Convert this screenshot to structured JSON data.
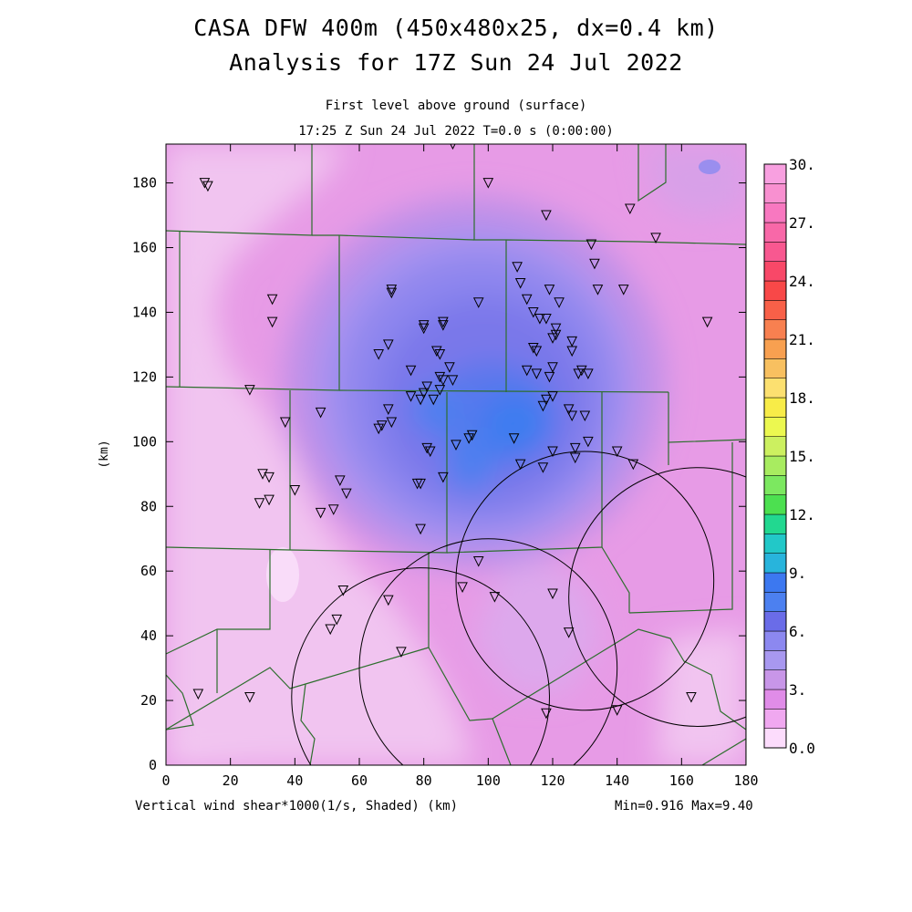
{
  "header": {
    "title_line1": "CASA DFW 400m (450x480x25, dx=0.4 km)",
    "title_line2": "Analysis for 17Z Sun 24 Jul 2022",
    "level": "First level above ground (surface)",
    "time": "17:25 Z Sun 24 Jul 2022   T=0.0 s (0:00:00)"
  },
  "footer": {
    "field_label": "Vertical wind shear*1000(1/s, Shaded)  (km)",
    "minmax": "Min=0.916 Max=9.40"
  },
  "chart_data": {
    "type": "heatmap",
    "title": "CASA DFW 400m (450x480x25, dx=0.4 km)",
    "subtitle": "Analysis for 17Z Sun 24 Jul 2022",
    "xlabel": "(km)",
    "ylabel": "(km)",
    "xlim": [
      0,
      180
    ],
    "ylim": [
      0,
      192
    ],
    "x_ticks": [
      0,
      20,
      40,
      60,
      80,
      100,
      120,
      140,
      160,
      180
    ],
    "y_ticks": [
      0,
      20,
      40,
      60,
      80,
      100,
      120,
      140,
      160,
      180
    ],
    "colorbar": {
      "min": 0,
      "max": 30,
      "step": 1.5,
      "labels": [
        "0.0",
        "3.",
        "6.",
        "9.",
        "12.",
        "15.",
        "18.",
        "21.",
        "24.",
        "27.",
        "30."
      ],
      "colors": [
        "#fcdcfc",
        "#f0a8f0",
        "#e08ce8",
        "#c896e8",
        "#a898f0",
        "#8c88f0",
        "#6a6ce8",
        "#4c80f0",
        "#3c78f0",
        "#28b4dc",
        "#22c8c8",
        "#22d890",
        "#4ce050",
        "#7ce860",
        "#a8ec60",
        "#ccf060",
        "#ecf850",
        "#f8ec48",
        "#fce070",
        "#f8c060",
        "#f8a050",
        "#f88050",
        "#f86048",
        "#f84848",
        "#f84868",
        "#f85890",
        "#f868a8",
        "#f878c0",
        "#f890d0",
        "#f8a0e0"
      ]
    },
    "field_min": 0.916,
    "field_max": 9.4,
    "radars": [
      {
        "x": 130,
        "y": 57,
        "r": 40
      },
      {
        "x": 165,
        "y": 52,
        "r": 40
      },
      {
        "x": 100,
        "y": 30,
        "r": 40
      },
      {
        "x": 79,
        "y": 21,
        "r": 40
      }
    ],
    "stations": [
      [
        89,
        192
      ],
      [
        100,
        180
      ],
      [
        12,
        180
      ],
      [
        13,
        179
      ],
      [
        118,
        170
      ],
      [
        144,
        172
      ],
      [
        152,
        163
      ],
      [
        132,
        161
      ],
      [
        133,
        155
      ],
      [
        109,
        154
      ],
      [
        119,
        147
      ],
      [
        134,
        147
      ],
      [
        142,
        147
      ],
      [
        70,
        147
      ],
      [
        70,
        146
      ],
      [
        33,
        144
      ],
      [
        112,
        144
      ],
      [
        97,
        143
      ],
      [
        110,
        149
      ],
      [
        114,
        140
      ],
      [
        116,
        138
      ],
      [
        118,
        138
      ],
      [
        122,
        143
      ],
      [
        86,
        137
      ],
      [
        86,
        136
      ],
      [
        80,
        136
      ],
      [
        80,
        135
      ],
      [
        121,
        135
      ],
      [
        120,
        132
      ],
      [
        121,
        133
      ],
      [
        126,
        131
      ],
      [
        33,
        137
      ],
      [
        168,
        137
      ],
      [
        66,
        127
      ],
      [
        69,
        130
      ],
      [
        84,
        128
      ],
      [
        85,
        127
      ],
      [
        114,
        129
      ],
      [
        115,
        128
      ],
      [
        126,
        128
      ],
      [
        112,
        122
      ],
      [
        115,
        121
      ],
      [
        119,
        120
      ],
      [
        120,
        123
      ],
      [
        129,
        122
      ],
      [
        131,
        121
      ],
      [
        128,
        121
      ],
      [
        76,
        122
      ],
      [
        85,
        120
      ],
      [
        86,
        119
      ],
      [
        88,
        123
      ],
      [
        89,
        119
      ],
      [
        85,
        116
      ],
      [
        83,
        113
      ],
      [
        76,
        114
      ],
      [
        80,
        115
      ],
      [
        81,
        117
      ],
      [
        79,
        113
      ],
      [
        26,
        116
      ],
      [
        37,
        106
      ],
      [
        48,
        109
      ],
      [
        67,
        105
      ],
      [
        70,
        106
      ],
      [
        69,
        110
      ],
      [
        66,
        104
      ],
      [
        95,
        102
      ],
      [
        94,
        101
      ],
      [
        108,
        101
      ],
      [
        125,
        110
      ],
      [
        126,
        108
      ],
      [
        130,
        108
      ],
      [
        117,
        111
      ],
      [
        118,
        113
      ],
      [
        120,
        114
      ],
      [
        140,
        97
      ],
      [
        145,
        93
      ],
      [
        131,
        100
      ],
      [
        127,
        98
      ],
      [
        127,
        95
      ],
      [
        117,
        92
      ],
      [
        120,
        97
      ],
      [
        81,
        98
      ],
      [
        82,
        97
      ],
      [
        90,
        99
      ],
      [
        110,
        93
      ],
      [
        86,
        89
      ],
      [
        78,
        87
      ],
      [
        79,
        87
      ],
      [
        54,
        88
      ],
      [
        56,
        84
      ],
      [
        32,
        89
      ],
      [
        30,
        90
      ],
      [
        32,
        82
      ],
      [
        29,
        81
      ],
      [
        40,
        85
      ],
      [
        52,
        79
      ],
      [
        48,
        78
      ],
      [
        79,
        73
      ],
      [
        97,
        63
      ],
      [
        55,
        54
      ],
      [
        69,
        51
      ],
      [
        92,
        55
      ],
      [
        102,
        52
      ],
      [
        120,
        53
      ],
      [
        125,
        41
      ],
      [
        53,
        45
      ],
      [
        51,
        42
      ],
      [
        73,
        35
      ],
      [
        10,
        22
      ],
      [
        26,
        21
      ],
      [
        118,
        16
      ],
      [
        140,
        17
      ],
      [
        163,
        21
      ]
    ]
  }
}
